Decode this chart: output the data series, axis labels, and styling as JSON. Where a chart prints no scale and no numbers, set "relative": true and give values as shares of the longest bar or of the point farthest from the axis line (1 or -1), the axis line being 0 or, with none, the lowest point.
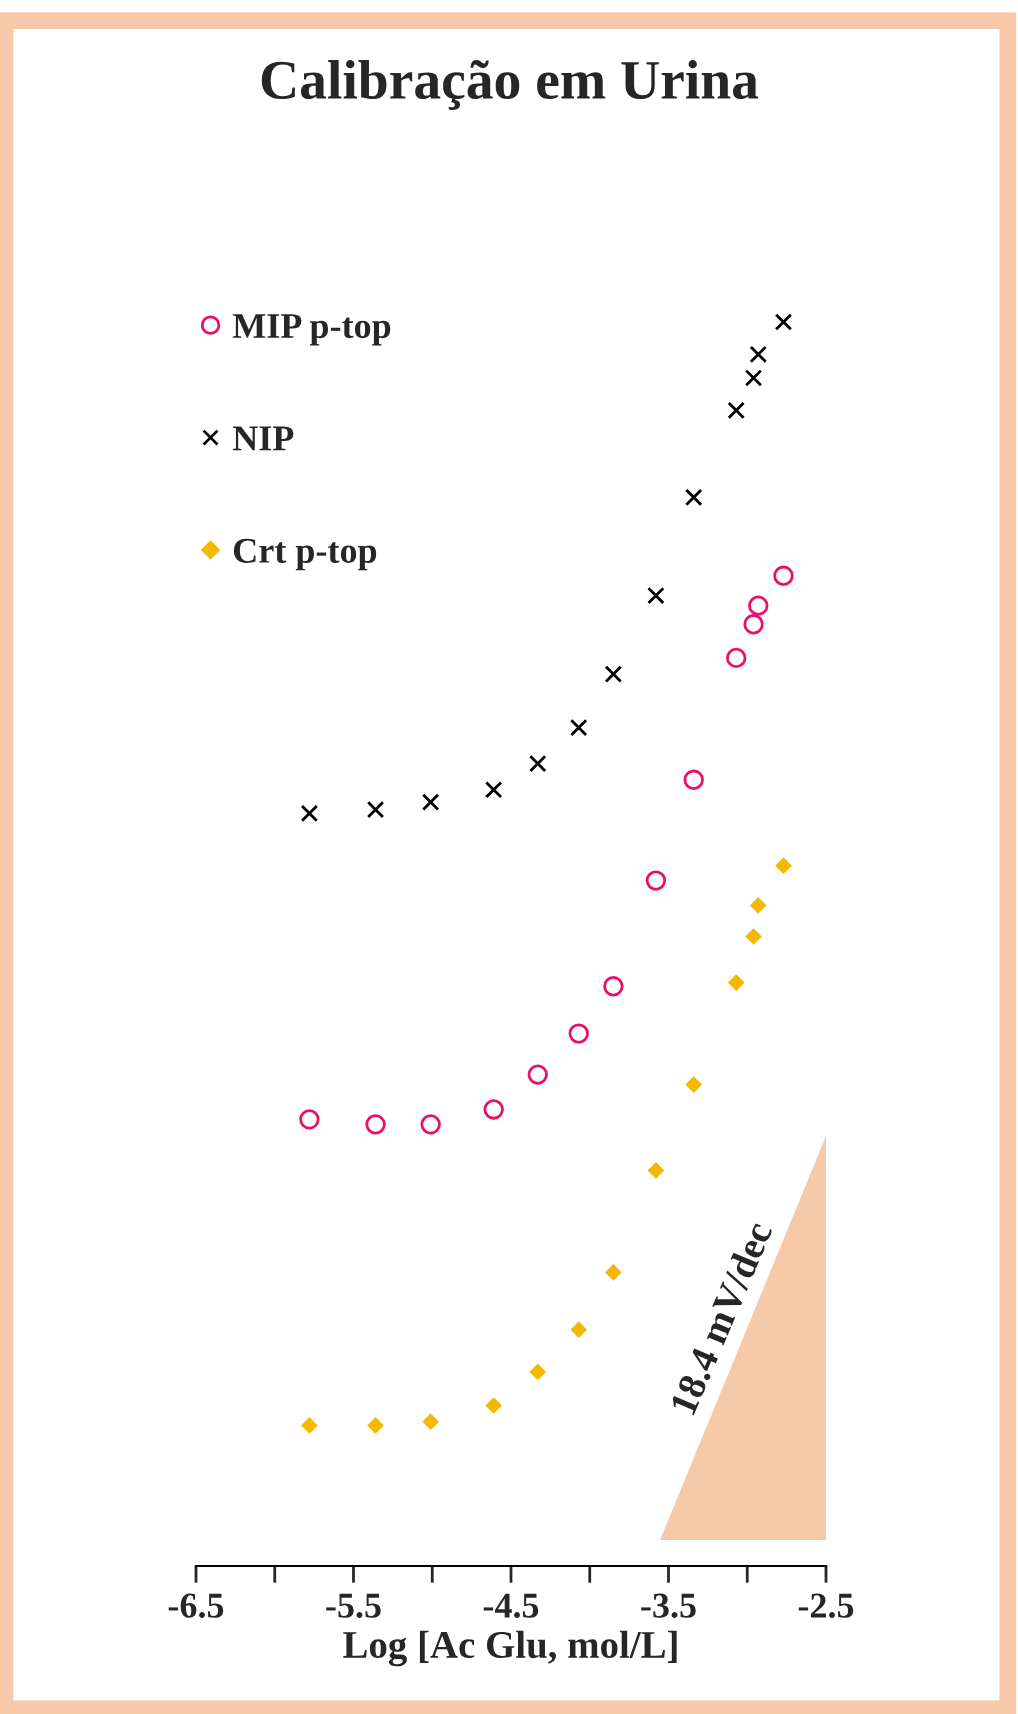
{
  "chart_data": {
    "type": "scatter",
    "title": "Calibração em Urina",
    "xlabel": "Log [Ac Glu, mol/L]",
    "relative": true,
    "xlim": [
      -6.5,
      -2.5
    ],
    "xticks": [
      -6.5,
      {
        "value": -6,
        "label": null
      },
      -5.5,
      {
        "value": -5,
        "label": null
      },
      -4.5,
      {
        "value": -4,
        "label": null
      },
      -3.5,
      {
        "value": -3,
        "label": null
      },
      -2.5
    ],
    "x": [
      -5.78,
      -5.36,
      -5.01,
      -4.61,
      -4.33,
      -4.07,
      -3.85,
      -3.58,
      -3.34,
      -3.07,
      -2.96,
      -2.93,
      -2.77
    ],
    "series": [
      {
        "name": "MIP p-top",
        "color": "#e8106a",
        "marker": "circle",
        "values": [
          0.359,
          0.355,
          0.355,
          0.367,
          0.395,
          0.428,
          0.466,
          0.551,
          0.632,
          0.73,
          0.757,
          0.772,
          0.796
        ]
      },
      {
        "name": "NIP",
        "color": "#000000",
        "marker": "cross",
        "values": [
          0.605,
          0.608,
          0.614,
          0.624,
          0.645,
          0.674,
          0.717,
          0.78,
          0.859,
          0.929,
          0.955,
          0.974,
          1.0
        ]
      },
      {
        "name": "Crt p-top",
        "color": "#f5b800",
        "marker": "diamond",
        "values": [
          0.113,
          0.113,
          0.116,
          0.129,
          0.156,
          0.19,
          0.236,
          0.318,
          0.387,
          0.469,
          0.506,
          0.531,
          0.563
        ]
      }
    ],
    "annotations": [
      "18.4 mV/dec"
    ],
    "legend": "top left",
    "grid": false
  }
}
